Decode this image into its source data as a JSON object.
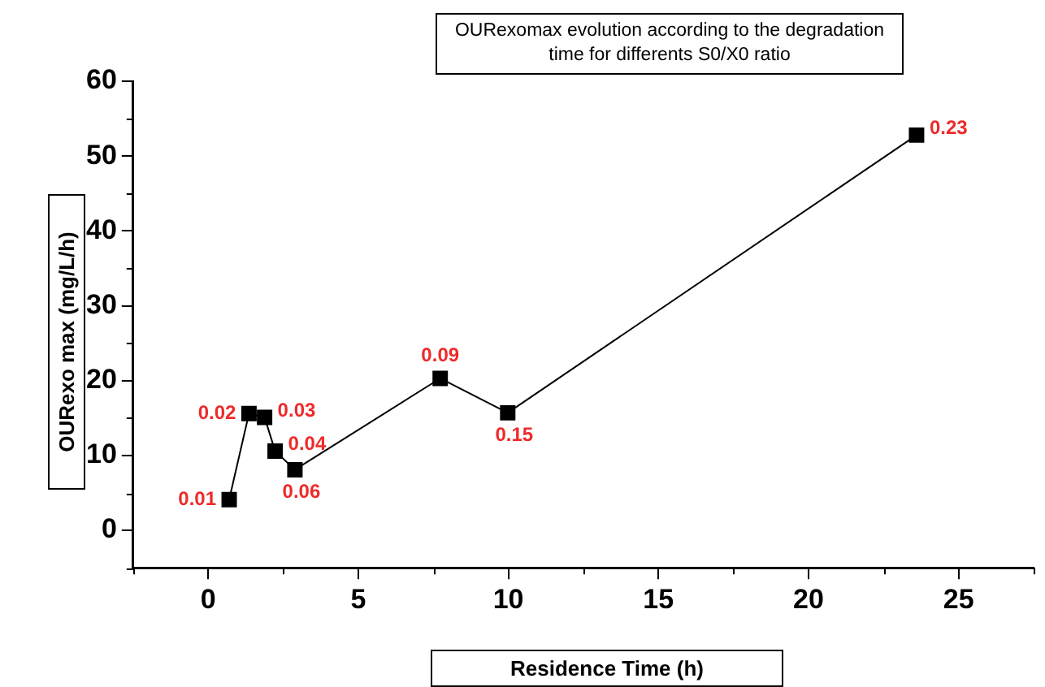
{
  "chart_data": {
    "type": "line",
    "title": "OURexomax evolution according to the degradation time for differents S0/X0 ratio",
    "xlabel": "Residence Time (h)",
    "ylabel": "OURexo max (mg/L/h)",
    "x": [
      0.7,
      1.36,
      1.88,
      2.23,
      2.89,
      7.73,
      9.98,
      23.6
    ],
    "series": [
      {
        "color": "#000000",
        "values": [
          4.1,
          15.6,
          15.1,
          10.6,
          8.1,
          20.3,
          15.7,
          52.8
        ]
      }
    ],
    "annotations": [
      {
        "text": "0.01",
        "x": 0.7,
        "y": 4.1
      },
      {
        "text": "0.02",
        "x": 1.36,
        "y": 15.6
      },
      {
        "text": "0.03",
        "x": 1.88,
        "y": 15.1
      },
      {
        "text": "0.04",
        "x": 2.23,
        "y": 10.6
      },
      {
        "text": "0.06",
        "x": 2.89,
        "y": 8.1
      },
      {
        "text": "0.09",
        "x": 7.73,
        "y": 20.3
      },
      {
        "text": "0.15",
        "x": 9.98,
        "y": 15.7
      },
      {
        "text": "0.23",
        "x": 23.6,
        "y": 52.8
      }
    ],
    "xlim": [
      -2.5,
      27.5
    ],
    "xticks": [
      0,
      5,
      10,
      15,
      20,
      25
    ],
    "ylim": [
      -5,
      60
    ],
    "yticks": [
      0,
      10,
      20,
      30,
      40,
      50,
      60
    ],
    "grid": false,
    "legend": false,
    "marker": "square",
    "line_style": "solid"
  }
}
